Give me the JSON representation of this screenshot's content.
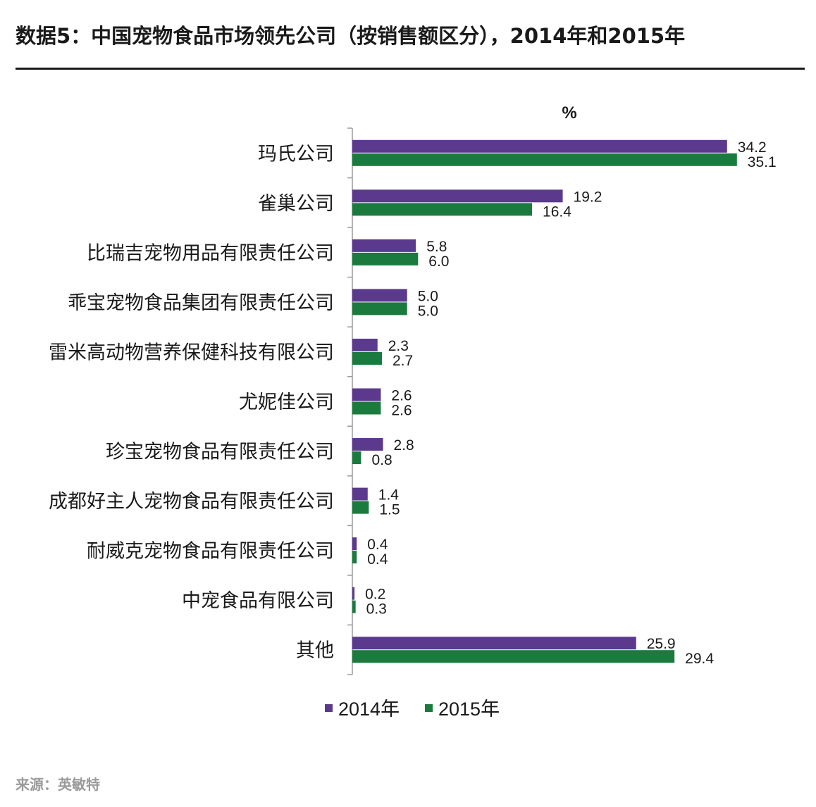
{
  "title": "数据5：中国宠物食品市场领先公司（按销售额区分），2014年和2015年",
  "source": "来源：英敏特",
  "chart_data": {
    "type": "bar",
    "orientation": "horizontal",
    "unit": "%",
    "categories": [
      "玛氏公司",
      "雀巢公司",
      "比瑞吉宠物用品有限责任公司",
      "乖宝宠物食品集团有限责任公司",
      "雷米高动物营养保健科技有限公司",
      "尤妮佳公司",
      "珍宝宠物食品有限责任公司",
      "成都好主人宠物食品有限责任公司",
      "耐威克宠物食品有限责任公司",
      "中宠食品有限公司",
      "其他"
    ],
    "series": [
      {
        "name": "2014年",
        "color": "#5b3a8e",
        "values": [
          34.2,
          19.2,
          5.8,
          5.0,
          2.3,
          2.6,
          2.8,
          1.4,
          0.4,
          0.2,
          25.9
        ],
        "labels": [
          "34.2",
          "19.2",
          "5.8",
          "5.0",
          "2.3",
          "2.6",
          "2.8",
          "1.4",
          "0.4",
          "0.2",
          "25.9"
        ]
      },
      {
        "name": "2015年",
        "color": "#1b7a3e",
        "values": [
          35.1,
          16.4,
          6.0,
          5.0,
          2.7,
          2.6,
          0.8,
          1.5,
          0.4,
          0.3,
          29.4
        ],
        "labels": [
          "35.1",
          "16.4",
          "6.0",
          "5.0",
          "2.7",
          "2.6",
          "0.8",
          "1.5",
          "0.4",
          "0.3",
          "29.4"
        ]
      }
    ],
    "xlim": [
      0,
      40
    ],
    "legend_position": "bottom",
    "grid": false
  }
}
